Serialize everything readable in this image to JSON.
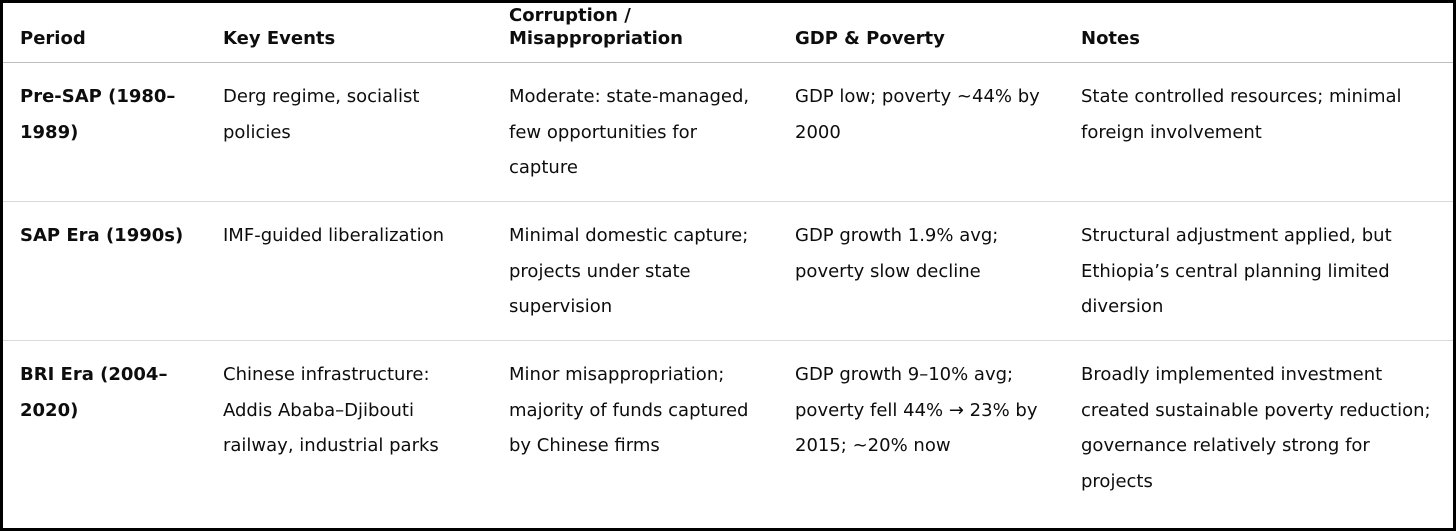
{
  "table": {
    "headers": {
      "period": "Period",
      "key_events": "Key Events",
      "corruption_line1": "Corruption /",
      "corruption_line2": "Misappropriation",
      "gdp_poverty": "GDP & Poverty",
      "notes": "Notes"
    },
    "rows": [
      {
        "period": "Pre-SAP (1980–1989)",
        "key_events": "Derg regime, socialist policies",
        "corruption": "Moderate: state-managed, few opportunities for capture",
        "gdp_poverty": "GDP low; poverty ~44% by 2000",
        "notes": "State controlled resources; minimal foreign involvement"
      },
      {
        "period": "SAP Era (1990s)",
        "key_events": "IMF-guided liberalization",
        "corruption": "Minimal domestic capture; projects under state supervision",
        "gdp_poverty": "GDP growth 1.9% avg; poverty slow decline",
        "notes": "Structural adjustment applied, but Ethiopia’s central planning limited diversion"
      },
      {
        "period": "BRI Era (2004–2020)",
        "key_events": "Chinese infrastructure: Addis Ababa–Djibouti railway, industrial parks",
        "corruption": "Minor misappropriation; majority of funds captured by Chinese firms",
        "gdp_poverty": "GDP growth 9–10% avg; poverty fell 44% → 23% by 2015; ~20% now",
        "notes": "Broadly implemented investment created sustainable poverty reduction; governance relatively strong for projects"
      }
    ]
  }
}
